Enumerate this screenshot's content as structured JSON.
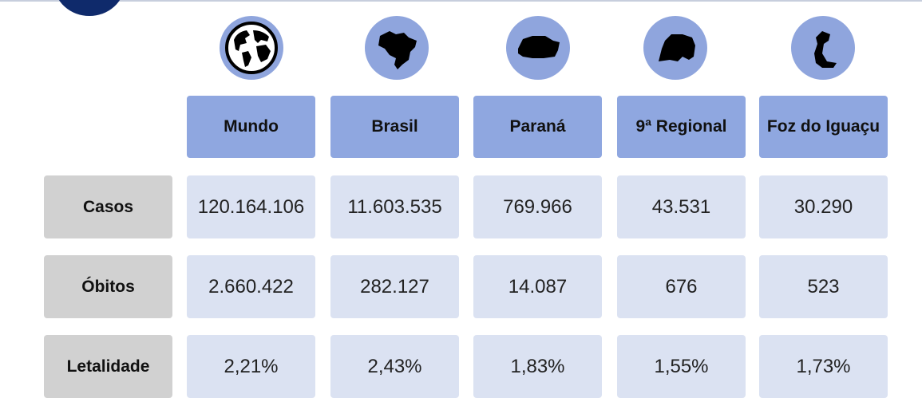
{
  "columns": [
    {
      "label": "Mundo",
      "icon": "globe-icon"
    },
    {
      "label": "Brasil",
      "icon": "brazil-map-icon"
    },
    {
      "label": "Paraná",
      "icon": "parana-map-icon"
    },
    {
      "label": "9ª Regional",
      "icon": "regional-map-icon"
    },
    {
      "label": "Foz do Iguaçu",
      "icon": "foz-do-iguacu-map-icon"
    }
  ],
  "rows": [
    {
      "label": "Casos",
      "values": [
        "120.164.106",
        "11.603.535",
        "769.966",
        "43.531",
        "30.290"
      ]
    },
    {
      "label": "Óbitos",
      "values": [
        "2.660.422",
        "282.127",
        "14.087",
        "676",
        "523"
      ]
    },
    {
      "label": "Letalidade",
      "values": [
        "2,21%",
        "2,43%",
        "1,83%",
        "1,55%",
        "1,73%"
      ]
    }
  ],
  "colors": {
    "header_fill": "#8fa7e0",
    "icon_circle": "#8fa5dd",
    "value_fill": "#dbe2f2",
    "row_label_fill": "#d1d1d1",
    "logo": "#0f2a6b"
  }
}
